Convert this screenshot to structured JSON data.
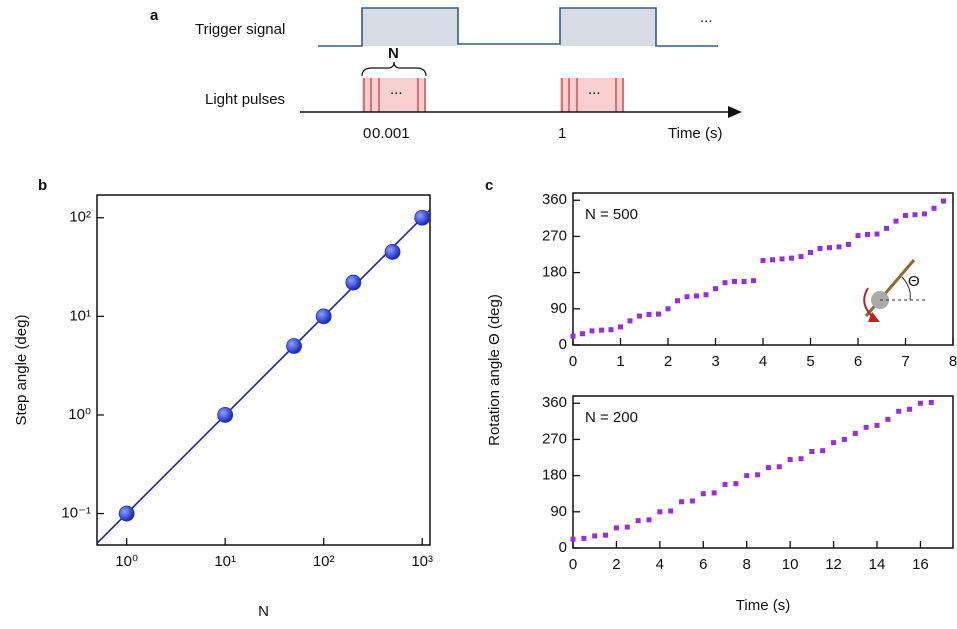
{
  "diagram": {
    "panel": "a",
    "trigger_label": "Trigger signal",
    "pulses_label": "Light pulses",
    "n_label": "N",
    "ellipsis": "...",
    "time_ticks": [
      "0",
      "0.001",
      "1"
    ],
    "time_label": "Time (s)"
  },
  "chart_data": [
    {
      "type": "scatter",
      "panel": "b",
      "xlabel": "N",
      "ylabel": "Step angle (deg)",
      "xscale": "log",
      "yscale": "log",
      "xlim": [
        0.5,
        1200
      ],
      "ylim": [
        0.048,
        170
      ],
      "xticks": [
        {
          "value": 1,
          "label": "10⁰"
        },
        {
          "value": 10,
          "label": "10¹"
        },
        {
          "value": 100,
          "label": "10²"
        },
        {
          "value": 1000,
          "label": "10³"
        }
      ],
      "yticks": [
        {
          "value": 0.1,
          "label": "10⁻¹"
        },
        {
          "value": 1,
          "label": "10⁰"
        },
        {
          "value": 10,
          "label": "10¹"
        },
        {
          "value": 100,
          "label": "10²"
        }
      ],
      "series": [
        {
          "color": "#1f2fd6",
          "x": [
            1,
            10,
            50,
            100,
            200,
            500,
            1000
          ],
          "values": [
            0.1,
            1,
            5,
            10,
            22,
            45,
            100
          ]
        }
      ],
      "fit": {
        "color": "#1a2a8a",
        "x": [
          0.5,
          1200
        ],
        "values": [
          0.05,
          120
        ]
      }
    },
    {
      "type": "scatter",
      "panel": "c",
      "ylabel": "Rotation angle Θ (deg)",
      "annotation": "N = 500",
      "inset_label": "Θ",
      "xlim": [
        0,
        8
      ],
      "ylim": [
        0,
        378
      ],
      "xticks": [
        0,
        1,
        2,
        3,
        4,
        5,
        6,
        7,
        8
      ],
      "yticks": [
        0,
        90,
        180,
        270,
        360
      ],
      "series": [
        {
          "color": "#9a2be0",
          "x": [
            0,
            0.2,
            0.4,
            0.6,
            0.8,
            1.0,
            1.2,
            1.4,
            1.6,
            1.8,
            2.0,
            2.2,
            2.4,
            2.6,
            2.8,
            3.0,
            3.2,
            3.4,
            3.6,
            3.8,
            4.0,
            4.2,
            4.4,
            4.6,
            4.8,
            5.0,
            5.2,
            5.4,
            5.6,
            5.8,
            6.0,
            6.2,
            6.4,
            6.6,
            6.8,
            7.0,
            7.2,
            7.4,
            7.6,
            7.8
          ],
          "values": [
            22,
            28,
            35,
            37,
            38,
            45,
            60,
            72,
            76,
            77,
            90,
            110,
            120,
            122,
            125,
            140,
            155,
            158,
            158,
            160,
            210,
            212,
            214,
            216,
            220,
            230,
            240,
            242,
            244,
            250,
            272,
            275,
            276,
            290,
            308,
            322,
            324,
            326,
            340,
            358
          ]
        }
      ]
    },
    {
      "type": "scatter",
      "xlabel": "Time (s)",
      "annotation": "N = 200",
      "xlim": [
        0,
        17.5
      ],
      "ylim": [
        0,
        378
      ],
      "xticks": [
        0,
        2,
        4,
        6,
        8,
        10,
        12,
        14,
        16
      ],
      "yticks": [
        0,
        90,
        180,
        270,
        360
      ],
      "series": [
        {
          "color": "#9a2be0",
          "x": [
            0,
            0.5,
            1,
            1.5,
            2,
            2.5,
            3,
            3.5,
            4,
            4.5,
            5,
            5.5,
            6,
            6.5,
            7,
            7.5,
            8,
            8.5,
            9,
            9.5,
            10,
            10.5,
            11,
            11.5,
            12,
            12.5,
            13,
            13.5,
            14,
            14.5,
            15,
            15.5,
            16,
            16.5
          ],
          "values": [
            22,
            24,
            30,
            32,
            50,
            52,
            68,
            70,
            90,
            92,
            115,
            117,
            135,
            137,
            158,
            160,
            180,
            182,
            200,
            202,
            220,
            222,
            240,
            242,
            262,
            270,
            285,
            300,
            305,
            320,
            340,
            345,
            360,
            362
          ]
        }
      ]
    }
  ]
}
